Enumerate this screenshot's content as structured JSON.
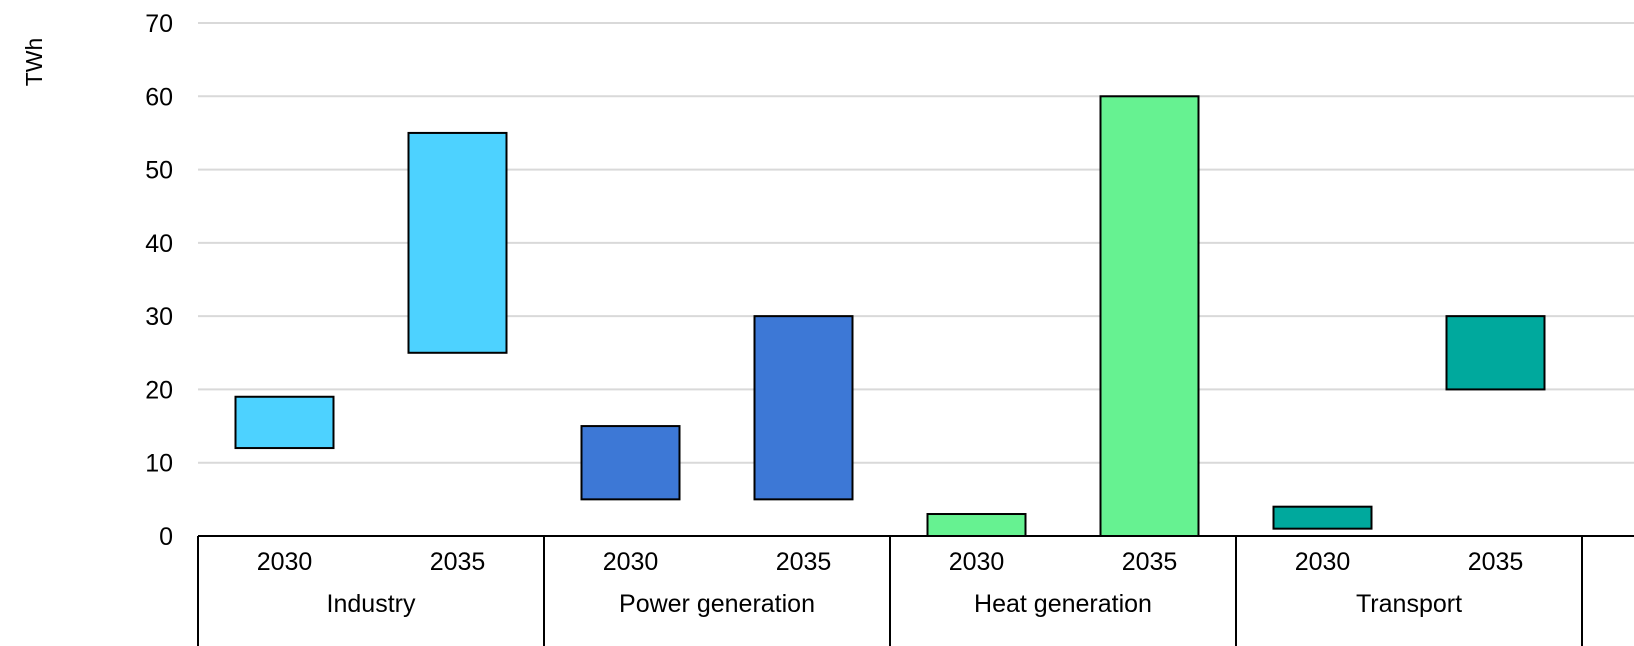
{
  "chart_data": {
    "type": "bar",
    "subtype": "floating-range",
    "title": "",
    "xlabel": "",
    "ylabel": "TWh",
    "ylim": [
      0,
      70
    ],
    "yticks": [
      0,
      10,
      20,
      30,
      40,
      50,
      60,
      70
    ],
    "grid": true,
    "legend": "none",
    "groups": [
      {
        "name": "Industry",
        "color": "#4DD2FF",
        "bars": [
          {
            "category": "2030",
            "low": 12,
            "high": 19
          },
          {
            "category": "2035",
            "low": 25,
            "high": 55
          }
        ]
      },
      {
        "name": "Power generation",
        "color": "#3D78D6",
        "bars": [
          {
            "category": "2030",
            "low": 5,
            "high": 15
          },
          {
            "category": "2035",
            "low": 5,
            "high": 30
          }
        ]
      },
      {
        "name": "Heat generation",
        "color": "#66F291",
        "bars": [
          {
            "category": "2030",
            "low": 0,
            "high": 3
          },
          {
            "category": "2035",
            "low": 0,
            "high": 60
          }
        ]
      },
      {
        "name": "Transport",
        "color": "#00A99D",
        "bars": [
          {
            "category": "2030",
            "low": 1,
            "high": 4
          },
          {
            "category": "2035",
            "low": 20,
            "high": 30
          }
        ]
      }
    ]
  }
}
